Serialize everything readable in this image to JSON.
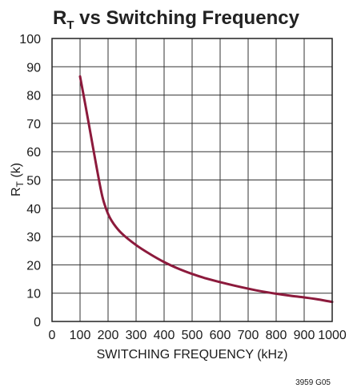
{
  "chart_data": {
    "type": "line",
    "title": {
      "main": "R",
      "sub": "T",
      "rest": " vs Switching Frequency"
    },
    "xlabel": "SWITCHING FREQUENCY (kHz)",
    "ylabel": {
      "main": "R",
      "sub": "T",
      "rest": " (k)"
    },
    "xlim": [
      0,
      1000
    ],
    "ylim": [
      0,
      100
    ],
    "x_ticks": [
      "0",
      "100",
      "200",
      "300",
      "400",
      "500",
      "600",
      "700",
      "800",
      "900",
      "1000"
    ],
    "y_ticks": [
      "0",
      "10",
      "20",
      "30",
      "40",
      "50",
      "60",
      "70",
      "80",
      "90",
      "100"
    ],
    "grid": true,
    "series": [
      {
        "color": "#8c1a3c",
        "x": [
          100,
          120,
          140,
          160,
          180,
          200,
          220,
          250,
          300,
          350,
          400,
          450,
          500,
          550,
          600,
          650,
          700,
          750,
          800,
          850,
          900,
          950,
          1000
        ],
        "y": [
          86.6,
          76,
          65,
          54,
          44,
          38,
          34.5,
          31,
          27,
          23.8,
          21,
          18.7,
          16.8,
          15.2,
          13.9,
          12.7,
          11.6,
          10.6,
          9.8,
          9.1,
          8.5,
          7.8,
          6.9
        ]
      }
    ],
    "code": "3959 G05"
  }
}
